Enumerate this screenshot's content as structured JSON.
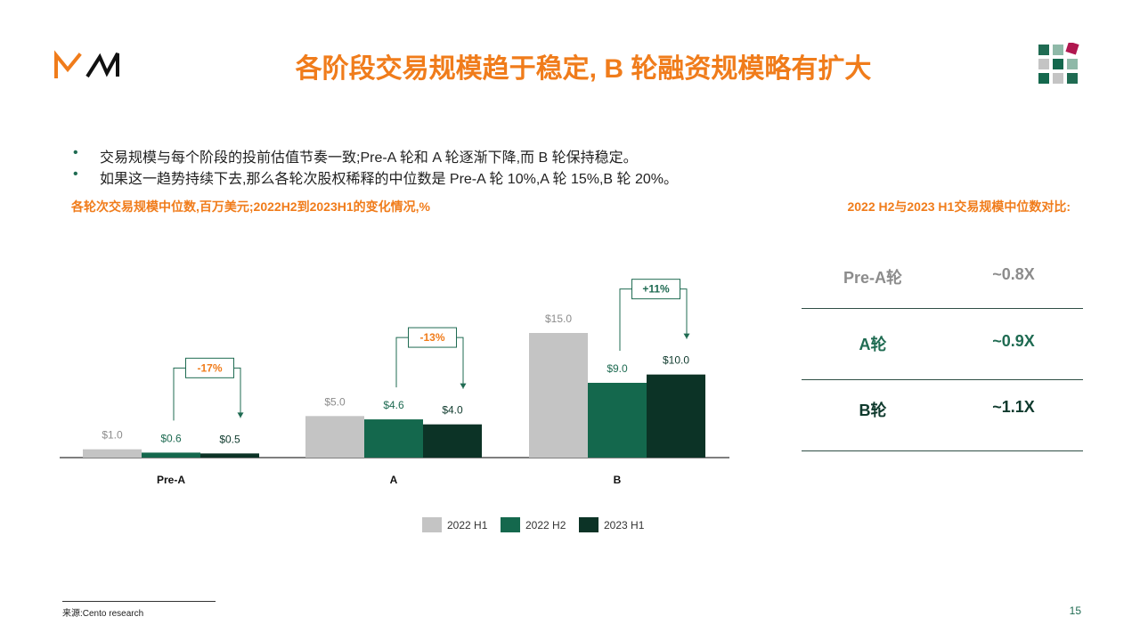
{
  "header": {
    "logo_name": "mw-logo",
    "title": "各阶段交易规模趋于稳定, B 轮融资规模略有扩大",
    "title_color": "#f07c1b"
  },
  "bullets": [
    "交易规模与每个阶段的投前估值节奏一致;Pre-A 轮和 A 轮逐渐下降,而 B 轮保持稳定。",
    "如果这一趋势持续下去,那么各轮次股权稀释的中位数是 Pre-A 轮 10%,A 轮 15%,B 轮 20%。"
  ],
  "bullet_symbol": "•",
  "chart_title": "各轮次交易规模中位数,百万美元;2022H2到2023H1的变化情况,%",
  "comparison": {
    "title": "2022 H2与2023 H1交易规模中位数对比:",
    "rows": [
      {
        "label": "Pre-A轮",
        "value": "~0.8X",
        "color": "#8c8c8c"
      },
      {
        "label": "A轮",
        "value": "~0.9X",
        "color": "#1f6b52"
      },
      {
        "label": "B轮",
        "value": "~1.1X",
        "color": "#0f3a2d"
      }
    ]
  },
  "chart_data": {
    "type": "bar",
    "categories": [
      "Pre-A",
      "A",
      "B"
    ],
    "series": [
      {
        "name": "2022 H1",
        "values": [
          1.0,
          5.0,
          15.0
        ],
        "labels": [
          "$1.0",
          "$5.0",
          "$15.0"
        ],
        "color": "#c4c4c4",
        "label_color": "#8c8c8c"
      },
      {
        "name": "2022 H2",
        "values": [
          0.6,
          4.6,
          9.0
        ],
        "labels": [
          "$0.6",
          "$4.6",
          "$9.0"
        ],
        "color": "#14684d",
        "label_color": "#1f6b52"
      },
      {
        "name": "2023 H1",
        "values": [
          0.5,
          4.0,
          10.0
        ],
        "labels": [
          "$0.5",
          "$4.0",
          "$10.0"
        ],
        "color": "#0c3326",
        "label_color": "#0f3a2d"
      }
    ],
    "changes": [
      {
        "category": "Pre-A",
        "text": "-17%",
        "color": "#f07c1b"
      },
      {
        "category": "A",
        "text": "-13%",
        "color": "#f07c1b"
      },
      {
        "category": "B",
        "text": "+11%",
        "color": "#1f6b52"
      }
    ],
    "ylim": [
      0,
      15
    ],
    "grid": false,
    "legend_position": "bottom"
  },
  "footer": {
    "source": "来源:Cento research",
    "page": "15"
  }
}
